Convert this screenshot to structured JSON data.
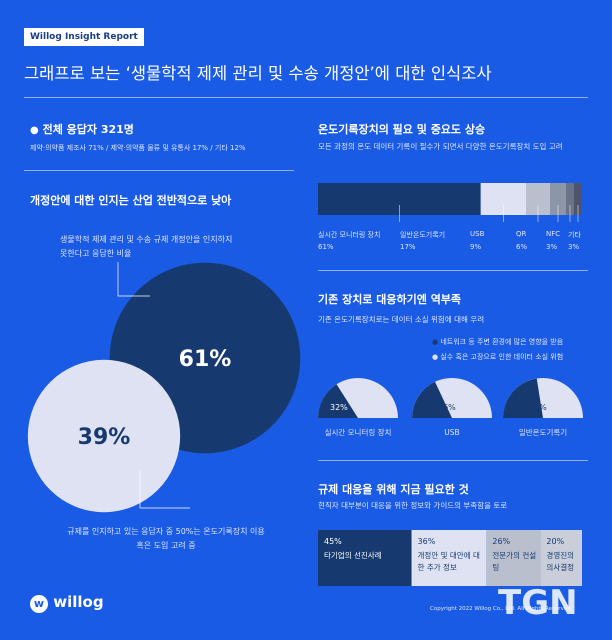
{
  "badge": "Willog Insight Report",
  "title": "그래프로 보는 ‘생물학적 제제 관리 및 수송 개정안’에 대한 인식조사",
  "respondents": {
    "title": "전체 응답자 321명",
    "detail": "제약·의약품 제조사 71% / 제약·의약품 물류 및 유통사 17% / 기타 12%"
  },
  "awareness": {
    "title": "개정안에 대한 인지는 산업 전반적으로 낮아",
    "items": [
      {
        "label": "생물학적 제제 관리 및 수송 규제 개정안을 인지하지 못한다고 응답한 비율",
        "value": 61,
        "value_label": "61%"
      },
      {
        "label": "규제를 인지하고 있는 응답자 중 50%는 온도기록장치 이용 혹은 도입 고려 중",
        "value": 39,
        "value_label": "39%"
      }
    ]
  },
  "importance": {
    "title": "온도기록장치의 필요 및 중요도 상승",
    "subtitle": "모든 과정의 온도 데이터 기록이 필수가 되면서 다양한 온도기록장치 도입 고려",
    "segments": [
      {
        "name": "실시간 모니터링 장치",
        "value": 61,
        "value_label": "61%",
        "color": "#163a70"
      },
      {
        "name": "일반온도기록기",
        "value": 17,
        "value_label": "17%",
        "color": "#dfe2f3"
      },
      {
        "name": "USB",
        "value": 9,
        "value_label": "9%",
        "color": "#b9bfcc"
      },
      {
        "name": "QR",
        "value": 6,
        "value_label": "6%",
        "color": "#8d95a8"
      },
      {
        "name": "NFC",
        "value": 3,
        "value_label": "3%",
        "color": "#6b7389"
      },
      {
        "name": "기타",
        "value": 3,
        "value_label": "3%",
        "color": "#4c556b"
      }
    ]
  },
  "vulnerability": {
    "title": "기존 장치로 대응하기엔 역부족",
    "subtitle": "기존 온도기록장치로는 데이터 소실 위험에 대해 우려",
    "legend": [
      "네트워크 등 주변 환경에 많은 영향을 받음",
      "실수 혹은 고장으로 인한 데이터 소실 위험"
    ],
    "devices": [
      {
        "name": "실시간 모니터링 장치",
        "value": 32,
        "value_label": "32%"
      },
      {
        "name": "USB",
        "value": 36,
        "value_label": "36%"
      },
      {
        "name": "일반온도기록기",
        "value": 45,
        "value_label": "45%"
      }
    ]
  },
  "needs": {
    "title": "규제 대응을 위해 지금 필요한 것",
    "subtitle": "현직자 대부분이 대응을 위한 정보와 가이드의 부족함을 토로",
    "items": [
      {
        "value": 45,
        "value_label": "45%",
        "label": "타기업의 선진사례",
        "color": "#163a70"
      },
      {
        "value": 36,
        "value_label": "36%",
        "label": "개정안 및 대안에 대한 추가 정보",
        "color": "#dfe2f3"
      },
      {
        "value": 26,
        "value_label": "26%",
        "label": "전문가의 컨설팅",
        "color": "#b9bfcc"
      },
      {
        "value": 20,
        "value_label": "20%",
        "label": "경영진의 의사결정",
        "color": "#c9ceda"
      }
    ]
  },
  "footer": {
    "logo": "willog",
    "copyright": "Copyright 2022 Willog Co., Ltd. All Rights Reserved.",
    "watermark": "TGN"
  }
}
